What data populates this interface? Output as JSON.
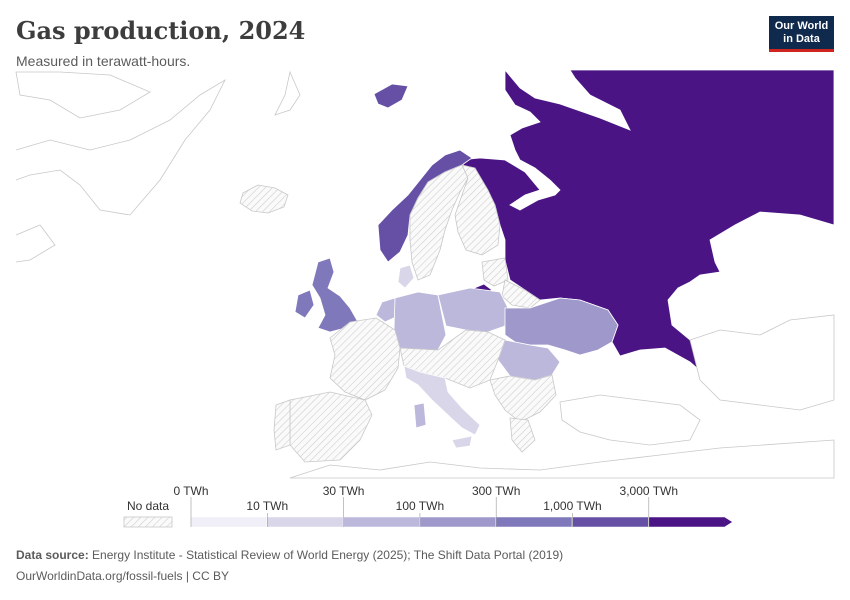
{
  "header": {
    "title": "Gas production, 2024",
    "subtitle": "Measured in terawatt-hours."
  },
  "logo": {
    "line1": "Our World",
    "line2": "in Data"
  },
  "legend": {
    "no_data_label": "No data",
    "unit": "TWh",
    "thresholds": [
      "0 TWh",
      "10 TWh",
      "30 TWh",
      "100 TWh",
      "300 TWh",
      "1,000 TWh",
      "3,000 TWh"
    ],
    "colors": [
      "#f0eef6",
      "#d9d6ea",
      "#bcb8db",
      "#9f98cb",
      "#7f78bb",
      "#6550a6",
      "#4a1485"
    ]
  },
  "map_data": {
    "regions": [
      {
        "name": "Russia",
        "bin": 6
      },
      {
        "name": "Norway",
        "bin": 5
      },
      {
        "name": "Svalbard",
        "bin": 5
      },
      {
        "name": "United Kingdom",
        "bin": 4
      },
      {
        "name": "Ukraine",
        "bin": 3
      },
      {
        "name": "Netherlands",
        "bin": 3
      },
      {
        "name": "Germany",
        "bin": 2
      },
      {
        "name": "Poland",
        "bin": 2
      },
      {
        "name": "Romania",
        "bin": 2
      },
      {
        "name": "Denmark",
        "bin": 1
      },
      {
        "name": "Italy",
        "bin": 1
      },
      {
        "name": "Ireland",
        "bin": 4
      },
      {
        "name": "Kaliningrad",
        "bin": 6
      },
      {
        "name": "Sweden",
        "bin": null
      },
      {
        "name": "Finland",
        "bin": null
      },
      {
        "name": "France",
        "bin": null
      },
      {
        "name": "Spain",
        "bin": null
      },
      {
        "name": "Portugal",
        "bin": null
      },
      {
        "name": "Iceland",
        "bin": null
      },
      {
        "name": "Belarus",
        "bin": null
      },
      {
        "name": "Baltic states",
        "bin": null
      },
      {
        "name": "Balkans",
        "bin": null
      },
      {
        "name": "Greece",
        "bin": null
      }
    ]
  },
  "footer": {
    "source_label": "Data source:",
    "source_text": "Energy Institute - Statistical Review of World Energy (2025); The Shift Data Portal (2019)",
    "url_text": "OurWorldinData.org/fossil-fuels | CC BY"
  }
}
